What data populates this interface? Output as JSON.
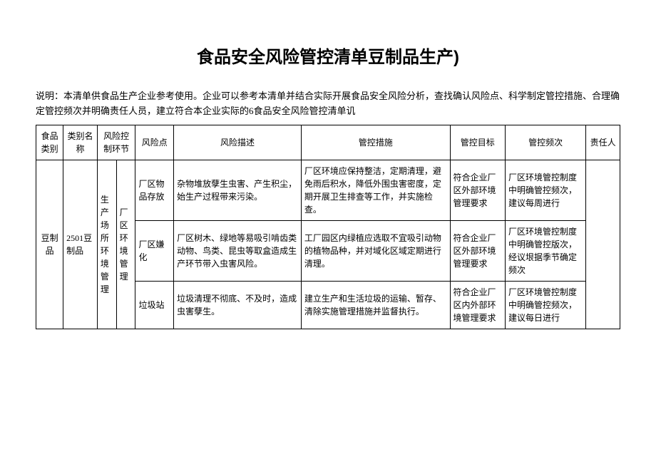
{
  "document": {
    "title": "食品安全风险管控清单豆制品生产)",
    "description": "说明：本清单供食品生产企业参考使用。企业可以参考本清单并结合实际开展食品安全风险分析，查找确认风险点、科学制定管控措施、合理确定管控频次并明确责任人员，建立符合本企业实际的6食品安全风险管控清单讥"
  },
  "table": {
    "headers": {
      "category": "食品类别",
      "typename": "类别名称",
      "control_link": "风险控制环节",
      "risk_point": "风险点",
      "risk_desc": "风险描述",
      "measures": "管控措施",
      "target": "管控目标",
      "frequency": "管控频次",
      "person": "责任人"
    },
    "merged": {
      "category": "豆制品",
      "typename": "2501豆制品",
      "control_link1": "生产场所环境管理",
      "control_link2": "厂区环境管理"
    },
    "rows": [
      {
        "risk_point": "厂区物品存放",
        "risk_desc": "杂物堆放孽生虫害、产生积尘，始生产过程带来污染。",
        "measures": "厂区环境应保持整洁，定期清理，避免雨后积水，降低外围虫害密度，定期开展卫生排查等工作，并实施检查。",
        "target": "符合企业厂区外部环境管理要求",
        "frequency": "厂区环境管控制度中明确管控频次，建议每周进行"
      },
      {
        "risk_point": "厂区嫌化",
        "risk_desc": "厂区树木、绿地等易吸引啃齿类动物、鸟类、昆虫等取盒造成生产环节带入虫害风险。",
        "measures": "工厂园区内绿植应选取不宜吸引动物的植物品种，并对域化区域定期进行清理。",
        "target": "符合企业厂区外部环境管理要求",
        "frequency": "厂区环境管控制度中明确管控版次，经议垠据季节确定频次"
      },
      {
        "risk_point": "垃圾站",
        "risk_desc": "垃圾清理不彻底、不及时，造成虫害孽生。",
        "measures": "建立生产和生活垃圾的运输、暂存、清除实施管理措施并监督执行。",
        "target": "符合企业厂区内外部环境管理要求",
        "frequency": "厂区环境管控制度中明确管控频次，建议每日进行"
      }
    ]
  },
  "styles": {
    "background_color": "#ffffff",
    "text_color": "#000000",
    "border_color": "#000000",
    "title_fontsize": 24,
    "body_fontsize": 12,
    "desc_fontsize": 13
  }
}
